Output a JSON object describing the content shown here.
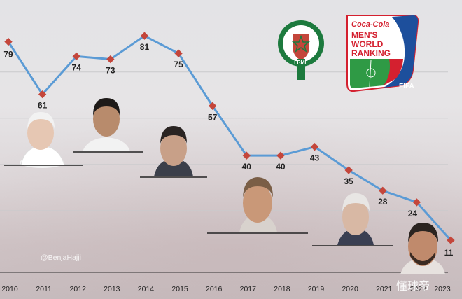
{
  "chart_data": {
    "type": "line",
    "x": [
      "2010",
      "2011",
      "2012",
      "2013",
      "2014",
      "2015",
      "2016",
      "2017",
      "2018",
      "2019",
      "2020",
      "2021",
      "2022",
      "2023"
    ],
    "values": [
      79,
      61,
      74,
      73,
      81,
      75,
      57,
      40,
      40,
      43,
      35,
      28,
      24,
      11
    ],
    "value_labels": [
      "79",
      "61",
      "74",
      "73",
      "81",
      "75",
      "57",
      "40",
      "40",
      "43",
      "35",
      "28",
      "24",
      "11"
    ],
    "ylim": [
      0,
      88
    ],
    "grid": true,
    "line_color": "#5b9bd5",
    "marker_color": "#c4463b"
  },
  "badges": {
    "fifa_sponsor": "Coca-Cola",
    "fifa_title_1": "MEN'S",
    "fifa_title_2": "WORLD",
    "fifa_title_3": "RANKING",
    "fifa_word": "FIFA",
    "frmf_abbr": "FRMF"
  },
  "watermark": {
    "handle": "@BenjaHajji",
    "site": "懂球帝"
  },
  "colors": {
    "line": "#5b9bd5",
    "marker": "#c4463b",
    "fifa_red": "#d4202f",
    "fifa_blue": "#1d4f9c",
    "frmf_green": "#1d7a3e"
  }
}
